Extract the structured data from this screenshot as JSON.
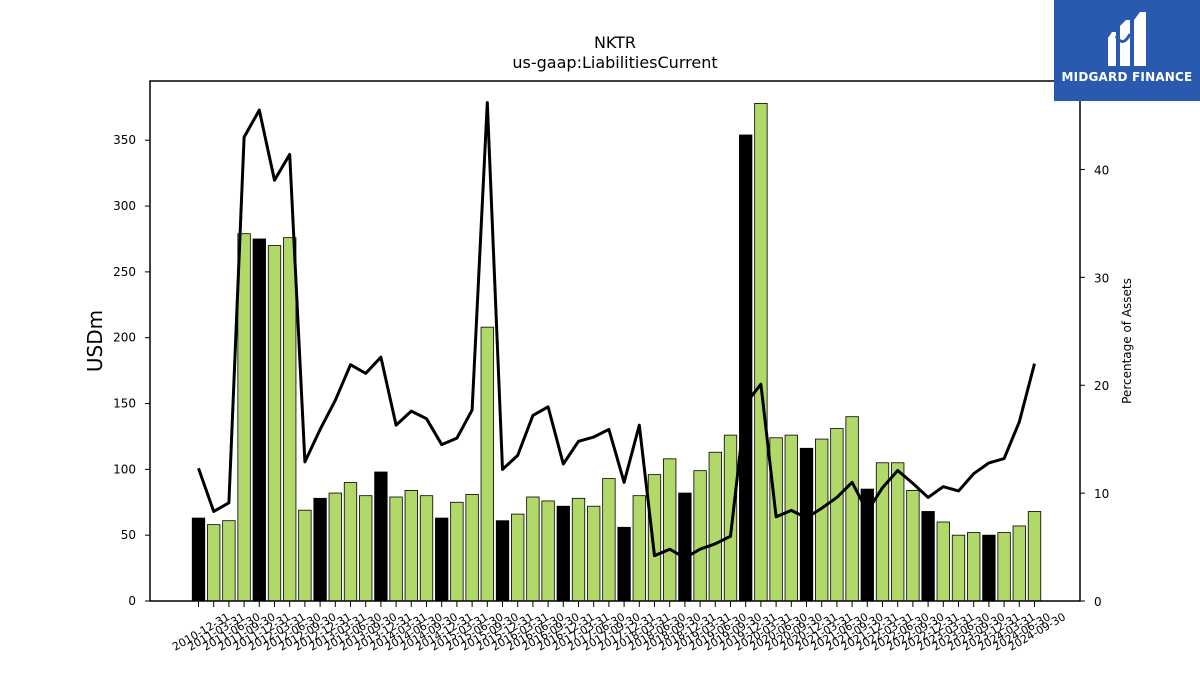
{
  "chart_data": {
    "type": "bar",
    "title": "NKTR",
    "subtitle": "us-gaap:LiabilitiesCurrent",
    "ylabel": "USDm",
    "y2label": "Percentage of Assets",
    "ylim": [
      0,
      395
    ],
    "y2lim": [
      0,
      48.2
    ],
    "yticks": [
      0,
      50,
      100,
      150,
      200,
      250,
      300,
      350
    ],
    "y2ticks": [
      0,
      10,
      20,
      30,
      40
    ],
    "categories": [
      "2010-12-31",
      "2011-03-31",
      "2011-06-30",
      "2011-09-30",
      "2011-12-31",
      "2012-03-31",
      "2012-06-30",
      "2012-09-30",
      "2012-12-31",
      "2013-03-31",
      "2013-06-30",
      "2013-09-30",
      "2013-12-31",
      "2014-03-31",
      "2014-06-30",
      "2014-09-30",
      "2014-12-31",
      "2015-03-31",
      "2015-06-30",
      "2015-09-30",
      "2015-12-31",
      "2016-03-31",
      "2016-06-30",
      "2016-09-30",
      "2016-12-31",
      "2017-03-31",
      "2017-06-30",
      "2017-09-30",
      "2017-12-31",
      "2018-03-31",
      "2018-06-30",
      "2018-09-30",
      "2018-12-31",
      "2019-03-31",
      "2019-06-30",
      "2019-09-30",
      "2019-12-31",
      "2020-03-31",
      "2020-06-30",
      "2020-09-30",
      "2020-12-31",
      "2021-03-31",
      "2021-06-30",
      "2021-09-30",
      "2021-12-31",
      "2022-03-31",
      "2022-06-30",
      "2022-09-30",
      "2022-12-31",
      "2023-03-31",
      "2023-06-30",
      "2023-09-30",
      "2023-12-31",
      "2024-03-31",
      "2024-06-30",
      "2024-09-30"
    ],
    "series": [
      {
        "kind": "bar",
        "values": [
          63,
          58,
          61,
          279,
          275,
          270,
          276,
          69,
          78,
          82,
          90,
          80,
          98,
          79,
          84,
          80,
          63,
          75,
          81,
          208,
          61,
          66,
          79,
          76,
          72,
          78,
          72,
          93,
          56,
          80,
          96,
          108,
          82,
          99,
          113,
          126,
          354,
          378,
          124,
          126,
          116,
          123,
          131,
          140,
          85,
          105,
          105,
          84,
          68,
          60,
          50,
          52,
          50,
          52,
          57,
          68
        ],
        "highlight_color": "#000000",
        "color": "#b0d96a"
      },
      {
        "kind": "line",
        "axis": "right",
        "color": "#000000",
        "values": [
          12.3,
          8.3,
          9.1,
          43,
          45.5,
          39,
          41.4,
          12.9,
          15.9,
          18.6,
          21.9,
          21.1,
          22.6,
          16.3,
          17.6,
          16.9,
          14.5,
          15.1,
          17.7,
          46.2,
          12.2,
          13.5,
          17.2,
          18,
          12.7,
          14.8,
          15.2,
          15.9,
          11,
          16.3,
          4.2,
          4.8,
          4,
          4.8,
          5.3,
          6,
          18.3,
          20.1,
          7.8,
          8.4,
          7.7,
          8.6,
          9.6,
          11,
          8.3,
          10.5,
          12.1,
          10.9,
          9.6,
          10.6,
          10.2,
          11.8,
          12.8,
          13.2,
          16.6,
          22
        ]
      }
    ],
    "grid": false,
    "legend": "none"
  },
  "logo": {
    "text": "MIDGARD FINANCE",
    "icon": "midgard-m-logo-icon"
  }
}
